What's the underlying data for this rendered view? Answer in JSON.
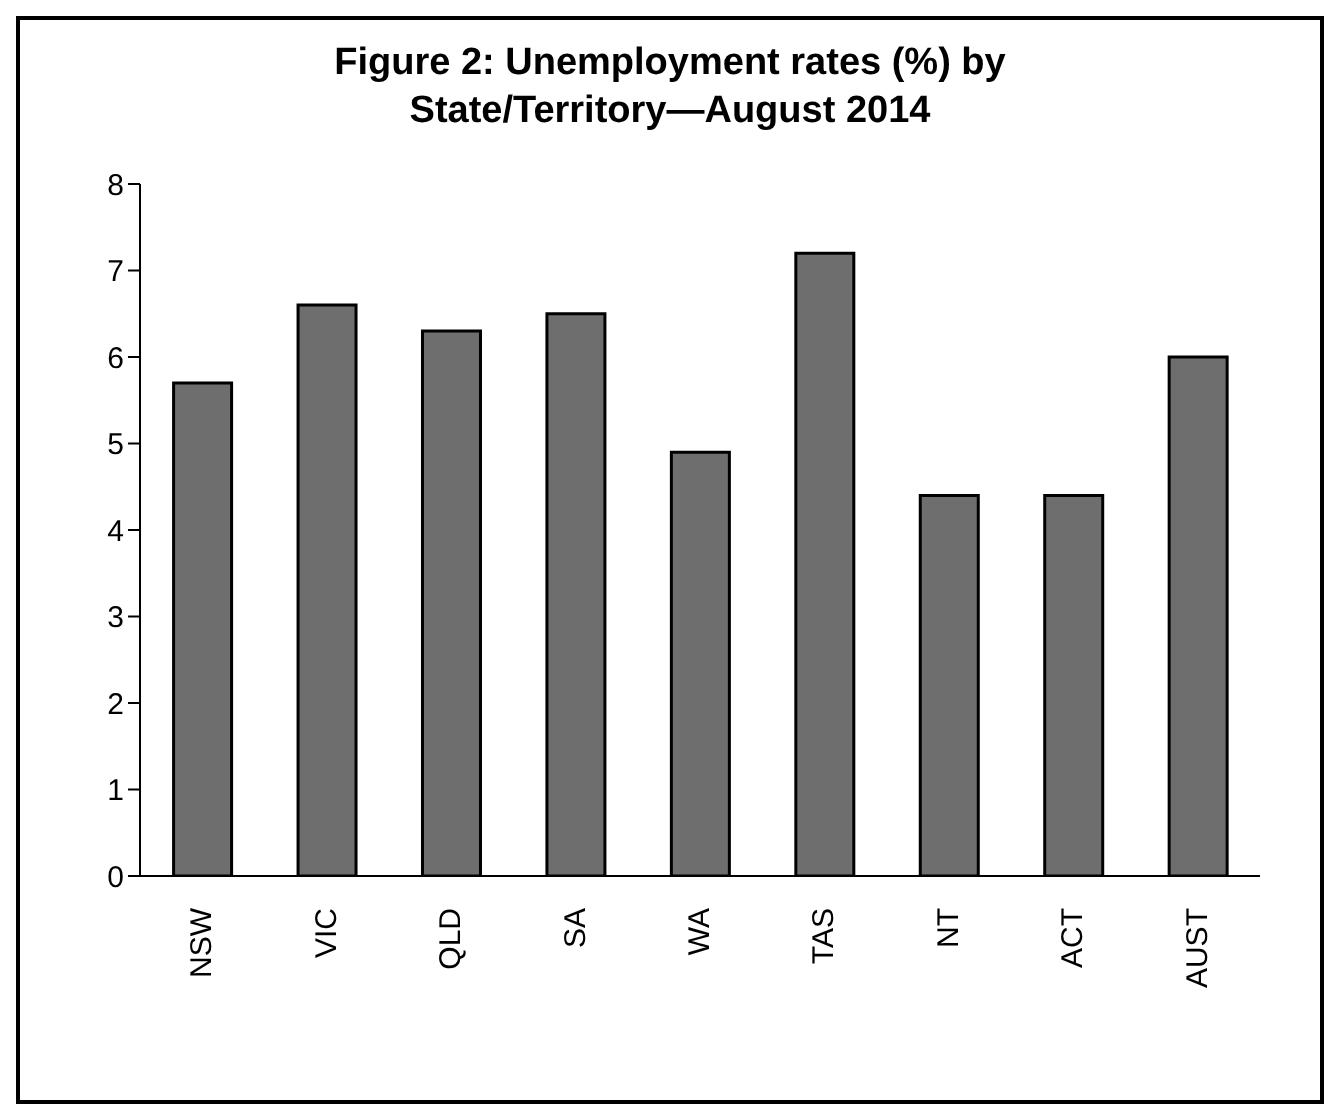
{
  "chart_data": {
    "type": "bar",
    "title": "Figure 2: Unemployment rates (%) by State/Territory—August 2014",
    "categories": [
      "NSW",
      "VIC",
      "QLD",
      "SA",
      "WA",
      "TAS",
      "NT",
      "ACT",
      "AUST"
    ],
    "values": [
      5.7,
      6.6,
      6.3,
      6.5,
      4.9,
      7.2,
      4.4,
      4.4,
      6.0
    ],
    "color": "#6e6e6e",
    "ylim": [
      0,
      8
    ],
    "yticks": [
      0,
      1,
      2,
      3,
      4,
      5,
      6,
      7,
      8
    ],
    "grid": false,
    "legend": false
  }
}
